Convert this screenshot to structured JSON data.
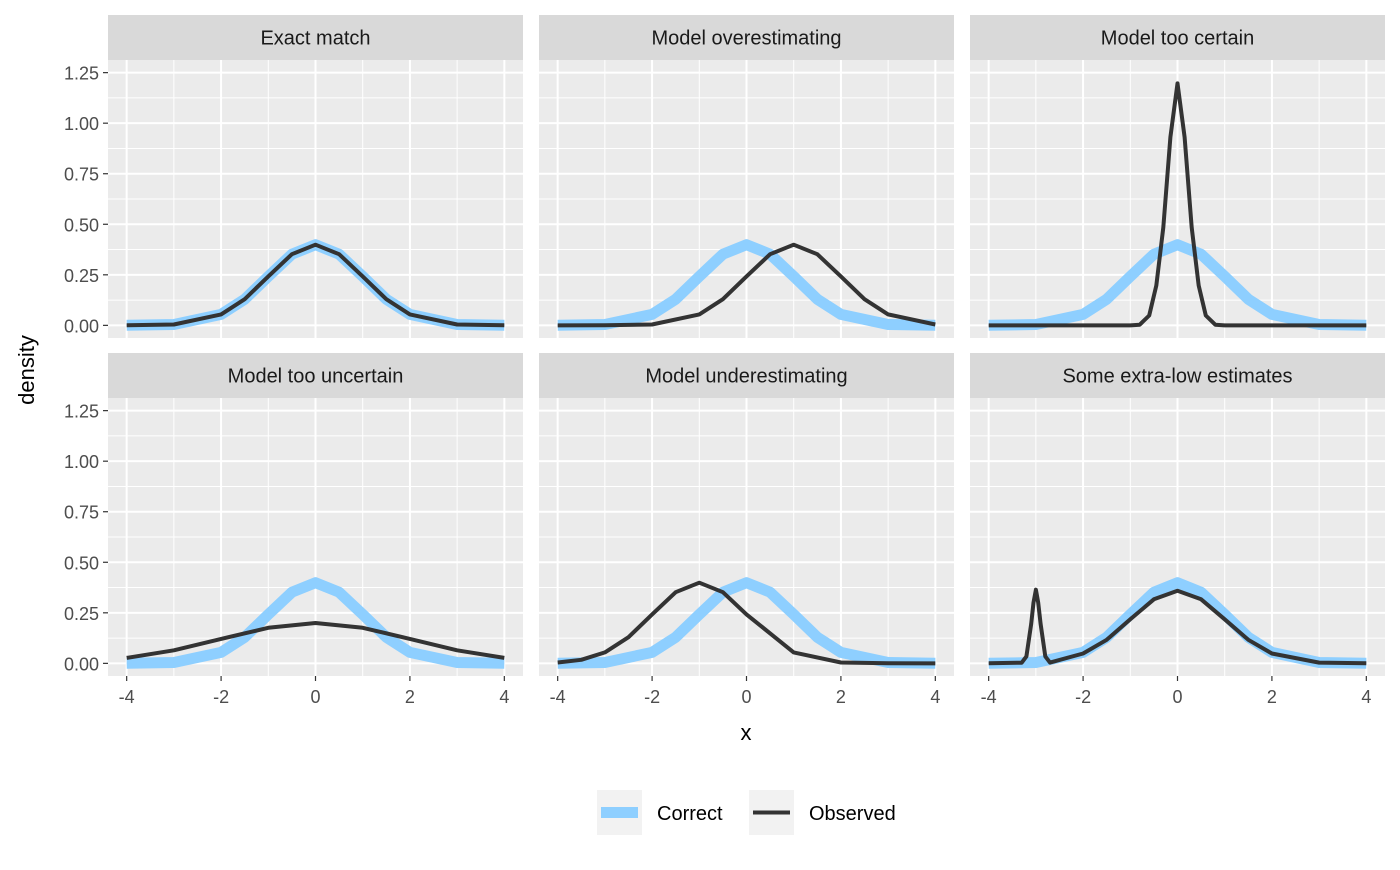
{
  "chart_data": {
    "type": "line",
    "subtype": "faceted-density",
    "xlabel": "x",
    "ylabel": "density",
    "xlim": [
      -4,
      4
    ],
    "ylim": [
      0,
      1.25
    ],
    "x_ticks": [
      -4,
      -2,
      0,
      2,
      4
    ],
    "x_tick_labels": [
      "-4",
      "-2",
      "0",
      "2",
      "4"
    ],
    "y_ticks": [
      0,
      0.25,
      0.5,
      0.75,
      1.0,
      1.25
    ],
    "y_tick_labels": [
      "0.00",
      "0.25",
      "0.50",
      "0.75",
      "1.00",
      "1.25"
    ],
    "grid": true,
    "legend_position": "bottom",
    "legend": [
      {
        "label": "Correct",
        "color": "#8ecfff"
      },
      {
        "label": "Observed",
        "color": "#333333"
      }
    ],
    "panels": [
      {
        "title": "Exact match",
        "series": [
          {
            "name": "Correct",
            "x": [
              -4,
              -3,
              -2,
              -1.5,
              -1,
              -0.5,
              0,
              0.5,
              1,
              1.5,
              2,
              3,
              4
            ],
            "y": [
              0.0001,
              0.0044,
              0.054,
              0.1295,
              0.242,
              0.3521,
              0.3989,
              0.3521,
              0.242,
              0.1295,
              0.054,
              0.0044,
              0.0001
            ]
          },
          {
            "name": "Observed",
            "x": [
              -4,
              -3,
              -2,
              -1.5,
              -1,
              -0.5,
              0,
              0.5,
              1,
              1.5,
              2,
              3,
              4
            ],
            "y": [
              0.0001,
              0.0044,
              0.054,
              0.1295,
              0.242,
              0.3521,
              0.3989,
              0.3521,
              0.242,
              0.1295,
              0.054,
              0.0044,
              0.0001
            ]
          }
        ]
      },
      {
        "title": "Model overestimating",
        "series": [
          {
            "name": "Correct",
            "x": [
              -4,
              -3,
              -2,
              -1.5,
              -1,
              -0.5,
              0,
              0.5,
              1,
              1.5,
              2,
              3,
              4
            ],
            "y": [
              0.0001,
              0.0044,
              0.054,
              0.1295,
              0.242,
              0.3521,
              0.3989,
              0.3521,
              0.242,
              0.1295,
              0.054,
              0.0044,
              0.0001
            ]
          },
          {
            "name": "Observed",
            "x": [
              -4,
              -3,
              -2,
              -1,
              -0.5,
              0,
              0.5,
              1,
              1.5,
              2,
              2.5,
              3,
              4
            ],
            "y": [
              0.0,
              0.0001,
              0.0044,
              0.054,
              0.1295,
              0.242,
              0.3521,
              0.3989,
              0.3521,
              0.242,
              0.1295,
              0.054,
              0.0044
            ]
          }
        ]
      },
      {
        "title": "Model too certain",
        "series": [
          {
            "name": "Correct",
            "x": [
              -4,
              -3,
              -2,
              -1.5,
              -1,
              -0.5,
              0,
              0.5,
              1,
              1.5,
              2,
              3,
              4
            ],
            "y": [
              0.0001,
              0.0044,
              0.054,
              0.1295,
              0.242,
              0.3521,
              0.3989,
              0.3521,
              0.242,
              0.1295,
              0.054,
              0.0044,
              0.0001
            ]
          },
          {
            "name": "Observed",
            "x": [
              -4,
              -1,
              -0.8,
              -0.6,
              -0.45,
              -0.3,
              -0.15,
              0,
              0.15,
              0.3,
              0.45,
              0.6,
              0.8,
              1,
              4
            ],
            "y": [
              0,
              0,
              0.0034,
              0.0487,
              0.1968,
              0.4839,
              0.9314,
              1.1968,
              0.9314,
              0.4839,
              0.1968,
              0.0487,
              0.0034,
              0,
              0
            ]
          }
        ]
      },
      {
        "title": "Model too uncertain",
        "series": [
          {
            "name": "Correct",
            "x": [
              -4,
              -3,
              -2,
              -1.5,
              -1,
              -0.5,
              0,
              0.5,
              1,
              1.5,
              2,
              3,
              4
            ],
            "y": [
              0.0001,
              0.0044,
              0.054,
              0.1295,
              0.242,
              0.3521,
              0.3989,
              0.3521,
              0.242,
              0.1295,
              0.054,
              0.0044,
              0.0001
            ]
          },
          {
            "name": "Observed",
            "x": [
              -4,
              -3,
              -2,
              -1,
              0,
              1,
              2,
              3,
              4
            ],
            "y": [
              0.027,
              0.0648,
              0.121,
              0.176,
              0.1995,
              0.176,
              0.121,
              0.0648,
              0.027
            ]
          }
        ]
      },
      {
        "title": "Model underestimating",
        "series": [
          {
            "name": "Correct",
            "x": [
              -4,
              -3,
              -2,
              -1.5,
              -1,
              -0.5,
              0,
              0.5,
              1,
              1.5,
              2,
              3,
              4
            ],
            "y": [
              0.0001,
              0.0044,
              0.054,
              0.1295,
              0.242,
              0.3521,
              0.3989,
              0.3521,
              0.242,
              0.1295,
              0.054,
              0.0044,
              0.0001
            ]
          },
          {
            "name": "Observed",
            "x": [
              -4,
              -3.5,
              -3,
              -2.5,
              -2,
              -1.5,
              -1,
              -0.5,
              0,
              1,
              2,
              3,
              4
            ],
            "y": [
              0.0044,
              0.0175,
              0.054,
              0.1295,
              0.242,
              0.3521,
              0.3989,
              0.3521,
              0.242,
              0.054,
              0.0044,
              0.0001,
              0.0
            ]
          }
        ]
      },
      {
        "title": "Some extra-low estimates",
        "series": [
          {
            "name": "Correct",
            "x": [
              -4,
              -3,
              -2,
              -1.5,
              -1,
              -0.5,
              0,
              0.5,
              1,
              1.5,
              2,
              3,
              4
            ],
            "y": [
              0.0001,
              0.0044,
              0.054,
              0.1295,
              0.242,
              0.3521,
              0.3989,
              0.3521,
              0.242,
              0.1295,
              0.054,
              0.0044,
              0.0001
            ]
          },
          {
            "name": "Observed",
            "x": [
              -4,
              -3.3,
              -3.2,
              -3.1,
              -3.05,
              -3,
              -2.95,
              -2.9,
              -2.8,
              -2.7,
              -2,
              -1.5,
              -1,
              -0.5,
              0,
              0.5,
              1,
              1.5,
              2,
              3,
              4
            ],
            "y": [
              0.0001,
              0.0032,
              0.0343,
              0.1958,
              0.3006,
              0.3645,
              0.3006,
              0.1958,
              0.0343,
              0.0036,
              0.0486,
              0.1166,
              0.2178,
              0.3169,
              0.359,
              0.3169,
              0.2178,
              0.1166,
              0.0486,
              0.004,
              0.0001
            ]
          }
        ]
      }
    ]
  }
}
